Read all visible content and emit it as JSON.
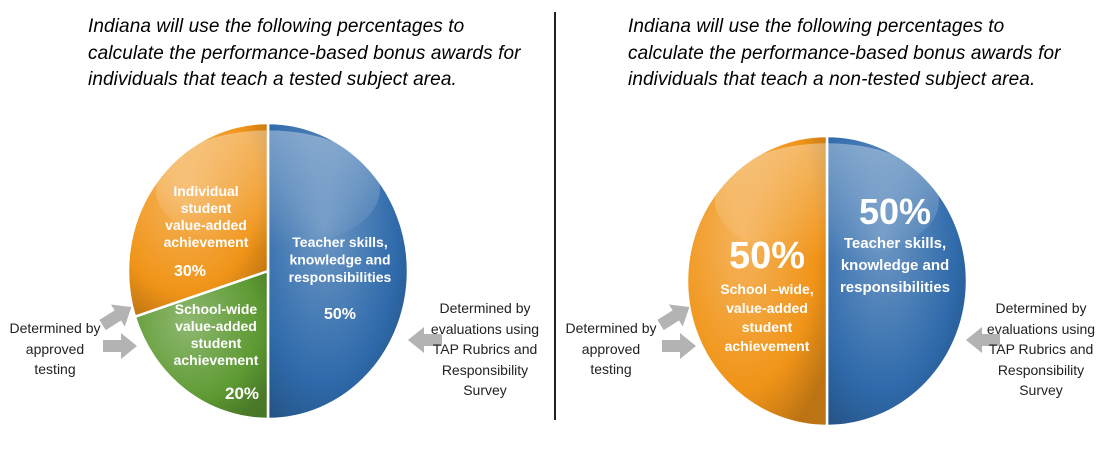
{
  "chart_data": [
    {
      "type": "pie",
      "title": "Indiana will use the following percentages to calculate the performance-based bonus awards for individuals that teach a tested subject area.",
      "slices": [
        {
          "label": "Teacher skills, knowledge and responsibilities",
          "label_lines": [
            "Teacher skills,",
            "knowledge and",
            "responsibilities"
          ],
          "value": 50,
          "value_label": "50%",
          "color": "#2f6aab"
        },
        {
          "label": "School-wide value-added student achievement",
          "label_lines": [
            "School-wide",
            "value-added",
            "student",
            "achievement"
          ],
          "value": 20,
          "value_label": "20%",
          "color": "#5e9a33"
        },
        {
          "label": "Individual student value-added achievement",
          "label_lines": [
            "Individual",
            "student",
            "value-added",
            "achievement"
          ],
          "value": 30,
          "value_label": "30%",
          "color": "#f09418"
        }
      ],
      "left_note": "Determined by approved testing",
      "right_note": "Determined by evaluations using TAP Rubrics and Responsibility Survey"
    },
    {
      "type": "pie",
      "title": "Indiana will use the following percentages to calculate the performance-based bonus awards for individuals that teach a non-tested subject area.",
      "slices": [
        {
          "label": "Teacher skills, knowledge and responsibilities",
          "label_lines": [
            "Teacher skills,",
            "knowledge and",
            "responsibilities"
          ],
          "value": 50,
          "value_label": "50%",
          "color": "#2f6aab"
        },
        {
          "label": "School –wide, value-added student achievement",
          "label_lines": [
            "School –wide,",
            "value-added",
            "student",
            "achievement"
          ],
          "value": 50,
          "value_label": "50%",
          "color": "#f09418"
        }
      ],
      "left_note": "Determined by approved testing",
      "right_note": "Determined by evaluations using TAP Rubrics and Responsibility Survey"
    }
  ],
  "colors": {
    "arrow": "#b3b3b3",
    "divider": "#222222"
  },
  "icons": [
    "arrow-right-icon",
    "arrow-up-right-icon",
    "arrow-left-icon"
  ]
}
